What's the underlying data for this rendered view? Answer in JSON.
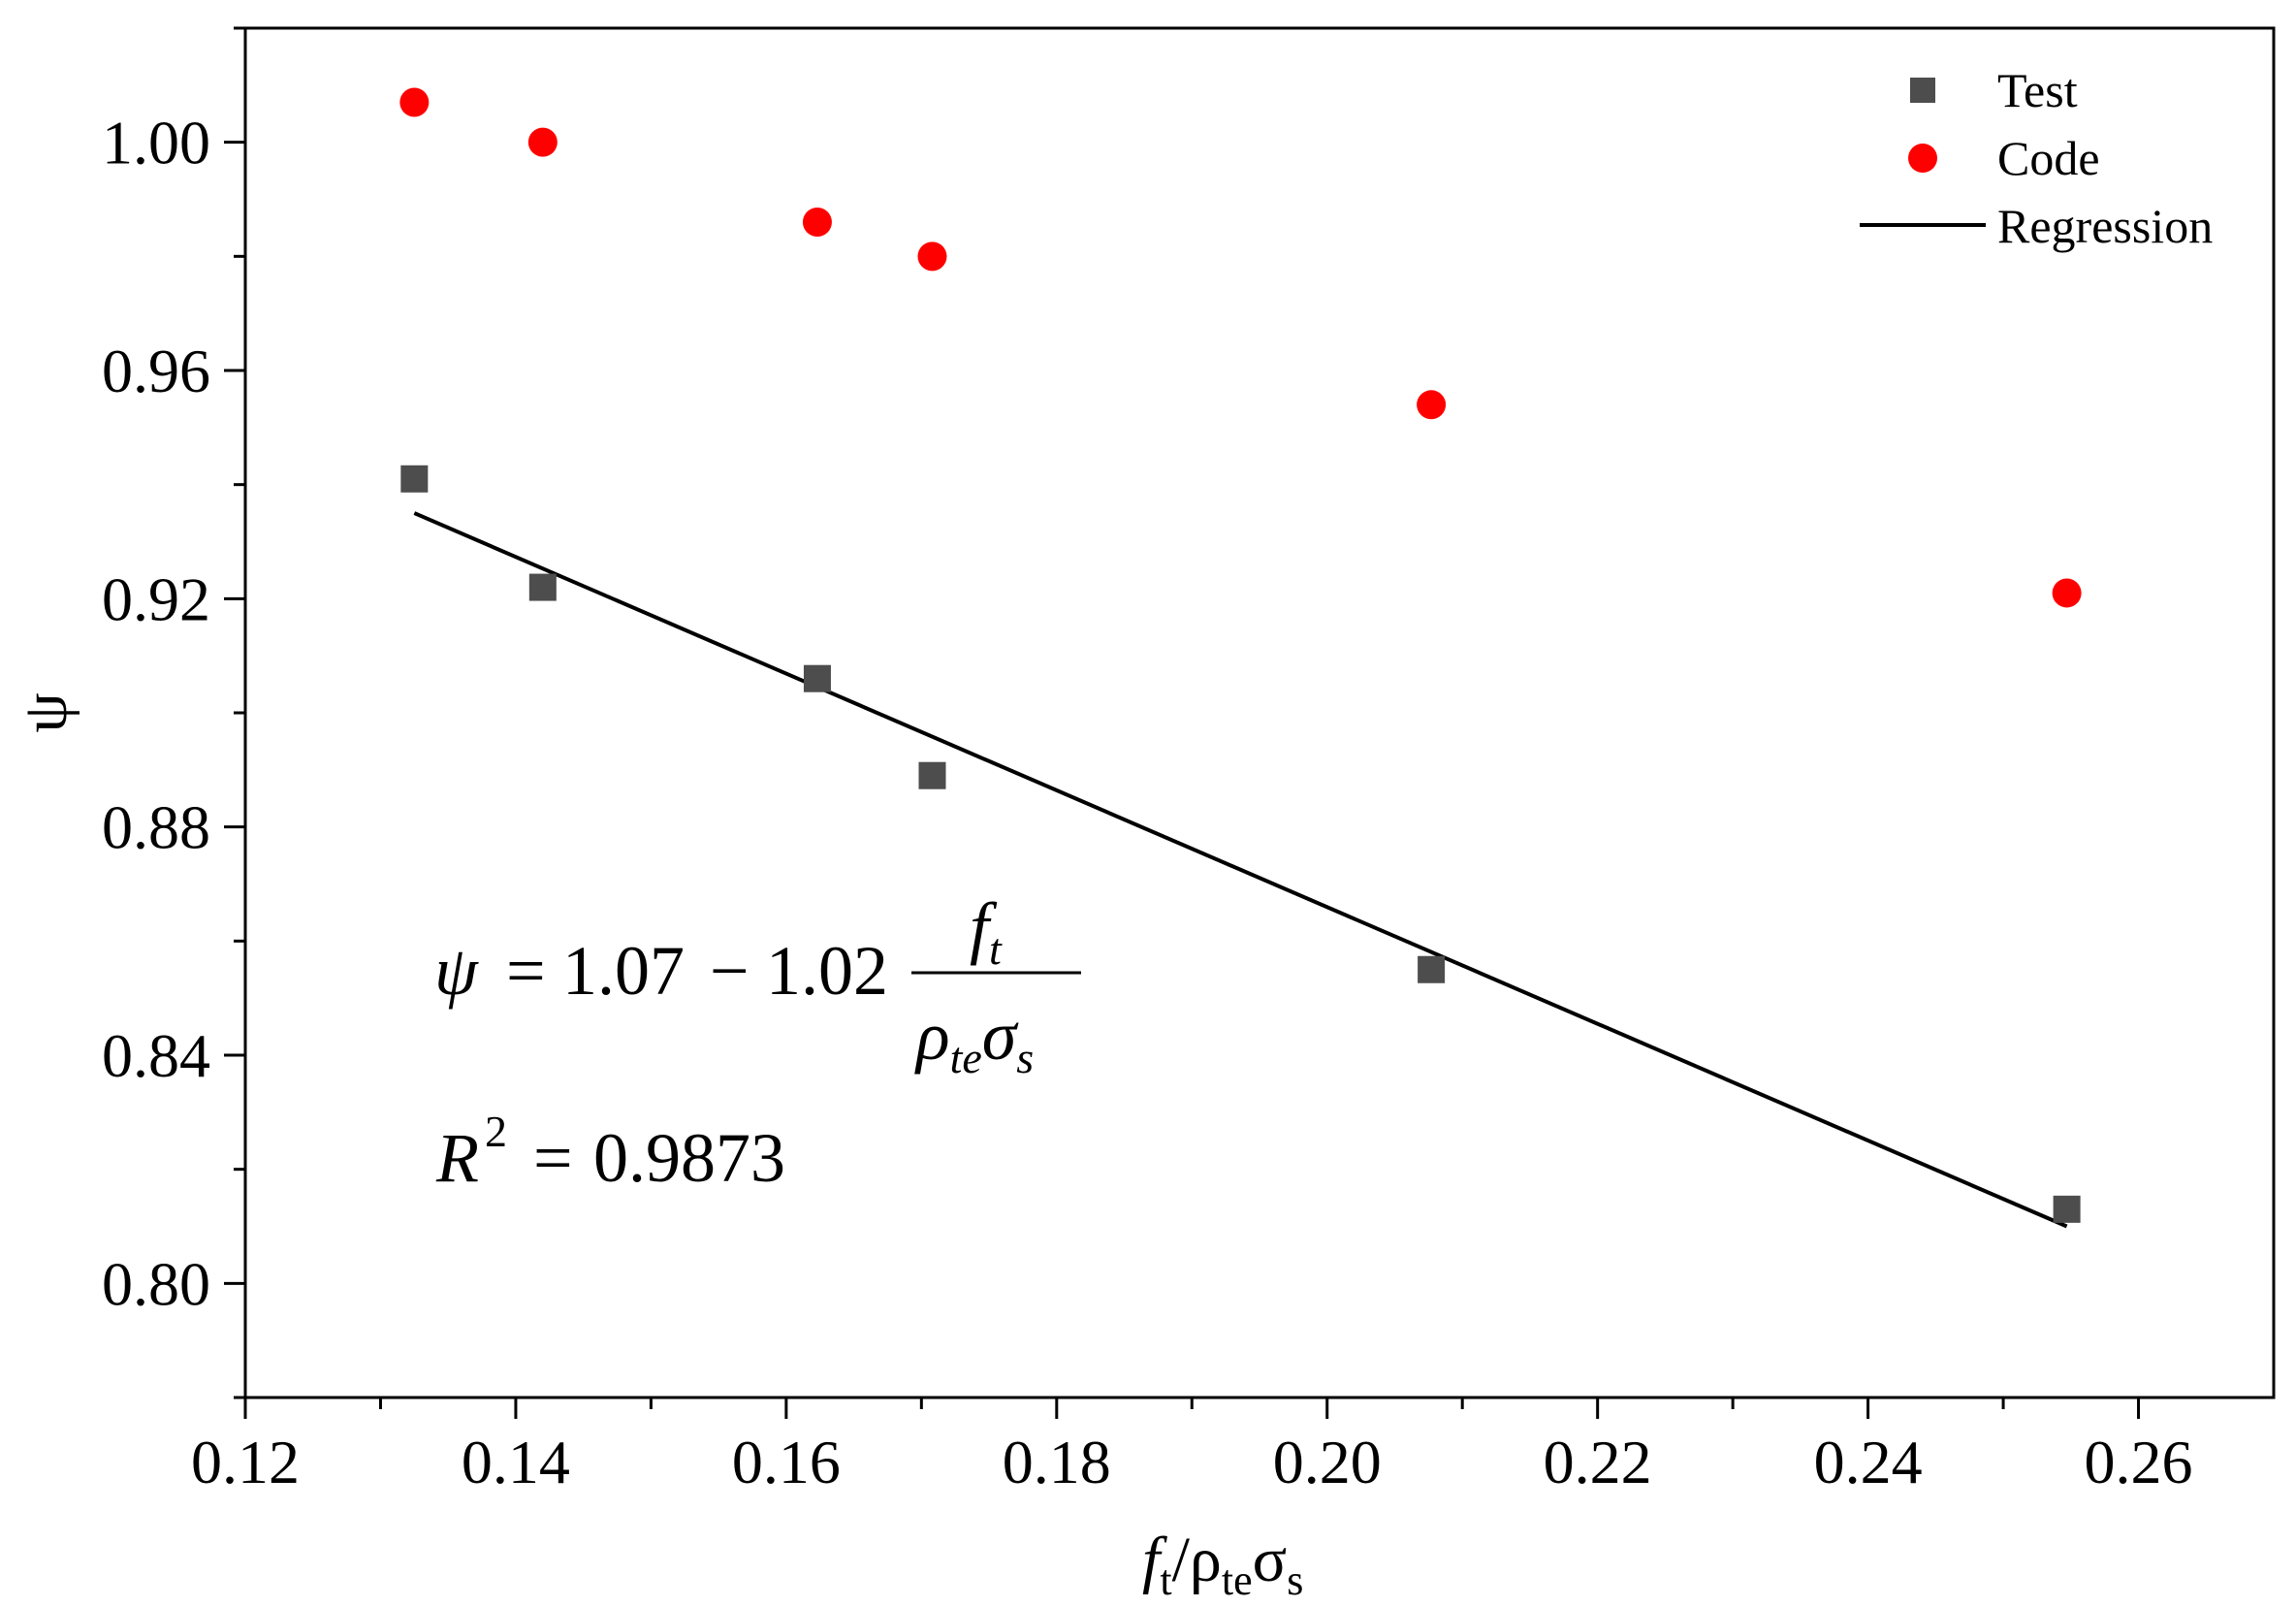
{
  "chart_data": {
    "type": "scatter",
    "xlabel": {
      "base": "f",
      "base_sub": "t",
      "slash": "/",
      "rho": "ρ",
      "rho_sub": "te",
      "sigma": "σ",
      "sigma_sub": "s"
    },
    "ylabel": "ψ",
    "xlim": [
      0.12,
      0.27
    ],
    "ylim": [
      0.78,
      1.02
    ],
    "xticks": [
      0.12,
      0.14,
      0.16,
      0.18,
      0.2,
      0.22,
      0.24,
      0.26
    ],
    "xtick_labels": [
      "0.12",
      "0.14",
      "0.16",
      "0.18",
      "0.20",
      "0.22",
      "0.24",
      "0.26"
    ],
    "xminor": [
      0.13,
      0.15,
      0.17,
      0.19,
      0.21,
      0.23,
      0.25
    ],
    "yticks": [
      0.8,
      0.84,
      0.88,
      0.92,
      0.96,
      1.0
    ],
    "ytick_labels": [
      "0.80",
      "0.84",
      "0.88",
      "0.92",
      "0.96",
      "1.00"
    ],
    "yminor": [
      0.78,
      0.82,
      0.86,
      0.9,
      0.94,
      0.98,
      1.02
    ],
    "series": [
      {
        "name": "Test",
        "marker": "square",
        "color": "#4d4d4d",
        "points": [
          {
            "x": 0.1325,
            "y": 0.941
          },
          {
            "x": 0.142,
            "y": 0.922
          },
          {
            "x": 0.1623,
            "y": 0.906
          },
          {
            "x": 0.1708,
            "y": 0.889
          },
          {
            "x": 0.2077,
            "y": 0.855
          },
          {
            "x": 0.2547,
            "y": 0.813
          }
        ]
      },
      {
        "name": "Code",
        "marker": "circle",
        "color": "#ff0000",
        "points": [
          {
            "x": 0.1325,
            "y": 1.007
          },
          {
            "x": 0.142,
            "y": 1.0
          },
          {
            "x": 0.1623,
            "y": 0.986
          },
          {
            "x": 0.1708,
            "y": 0.98
          },
          {
            "x": 0.2077,
            "y": 0.954
          },
          {
            "x": 0.2547,
            "y": 0.921
          }
        ]
      },
      {
        "name": "Regression",
        "marker": "line",
        "color": "#000000",
        "points": [
          {
            "x": 0.1325,
            "y": 0.935
          },
          {
            "x": 0.2547,
            "y": 0.81
          }
        ]
      }
    ],
    "legend": [
      "Test",
      "Code",
      "Regression"
    ],
    "legend_position": "top-right",
    "annotations": {
      "equation": {
        "lhs": "ψ",
        "eq": "=",
        "const": "1.07",
        "minus": "−",
        "coef": "1.02",
        "num": "f",
        "num_sub": "t",
        "den_rho": "ρ",
        "den_rho_sub": "te",
        "den_sigma": "σ",
        "den_sigma_sub": "s"
      },
      "r_squared": {
        "R": "R",
        "sup": "2",
        "eq": "=",
        "value": "0.9873"
      }
    }
  }
}
